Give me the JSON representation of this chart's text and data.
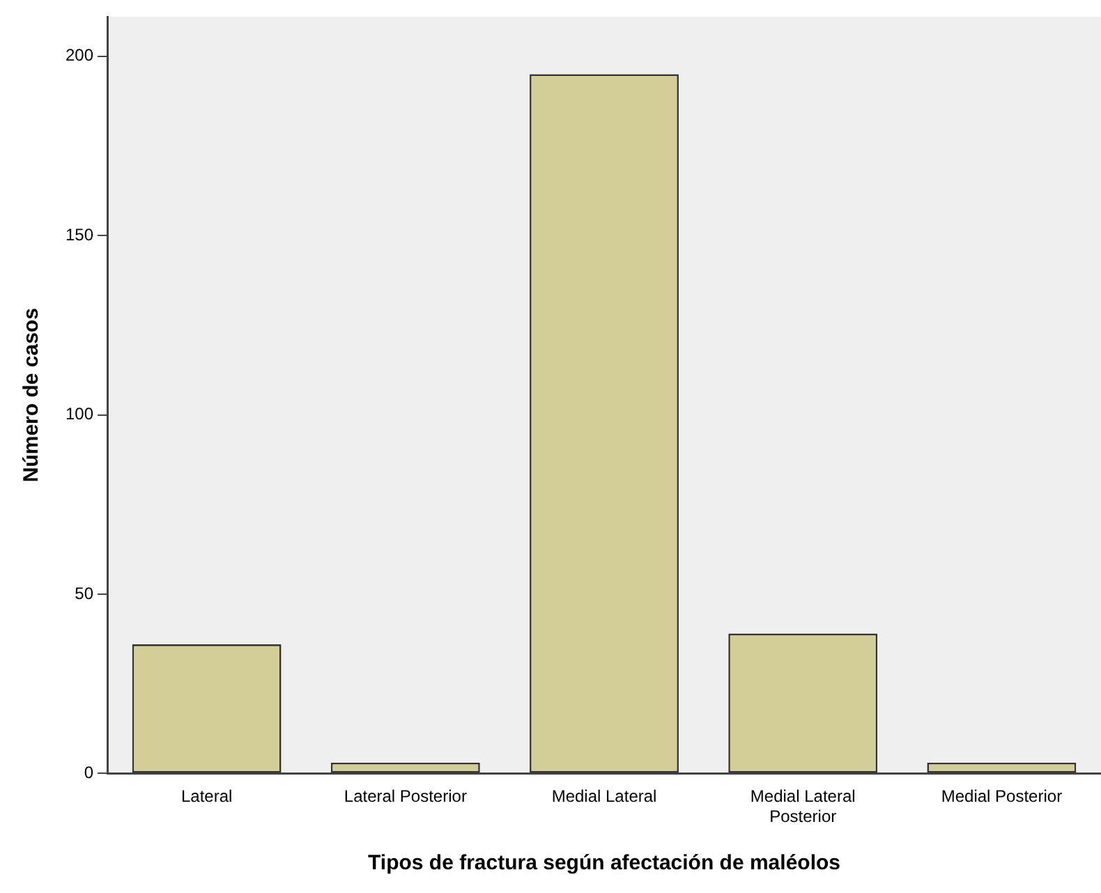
{
  "chart_data": {
    "type": "bar",
    "xlabel": "Tipos de fractura según afectación de maléolos",
    "ylabel": "Número de casos",
    "categories": [
      "Lateral",
      "Lateral Posterior",
      "Medial Lateral",
      "Medial Lateral Posterior",
      "Medial Posterior"
    ],
    "values": [
      36,
      3,
      195,
      39,
      3
    ],
    "color": "#d3ce97",
    "ylim": [
      0,
      211
    ],
    "yticks": [
      0,
      50,
      100,
      150,
      200
    ],
    "grid": false,
    "legend": false
  }
}
